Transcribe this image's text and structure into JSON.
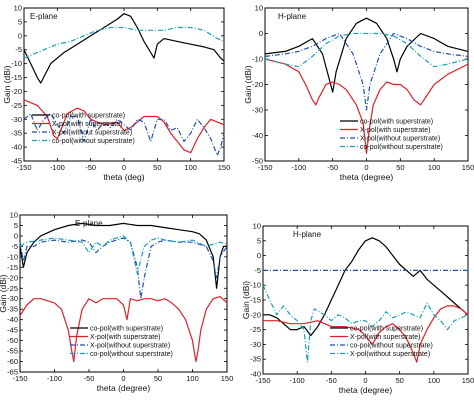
{
  "colors": {
    "co_with": "#000000",
    "x_with": "#e0202a",
    "co_without": "#1f4fb0",
    "x_without": "#1a9fb8"
  },
  "chart_data": [
    {
      "type": "line",
      "title": "E-plane",
      "xlabel": "theta (deg)",
      "ylabel": "Gain (dBi)",
      "xlim": [
        -150,
        150
      ],
      "ylim": [
        -45,
        10
      ],
      "xticks": [
        -150,
        -100,
        -50,
        0,
        50,
        100,
        150
      ],
      "xtick_labels": [
        "-150",
        "-100",
        "-50",
        "0",
        "50",
        "100",
        "150"
      ],
      "yticks": [
        10,
        5,
        0,
        -5,
        -10,
        -15,
        -20,
        -25,
        -30,
        -35,
        -40,
        -45
      ],
      "ytick_labels": [
        "10",
        "5",
        "0",
        "-5",
        "-10",
        "-15",
        "-20",
        "-25",
        "-30",
        "-35",
        "-40",
        "-45"
      ],
      "legend": "bottom-left",
      "series": [
        {
          "name": "co-pol(with superstrate)",
          "style": "solid",
          "color": "#000000",
          "x": [
            -150,
            -140,
            -130,
            -125,
            -110,
            -90,
            -70,
            -50,
            -30,
            -10,
            0,
            10,
            20,
            30,
            40,
            45,
            50,
            60,
            80,
            100,
            120,
            135,
            145,
            150
          ],
          "y": [
            -5,
            -10,
            -15,
            -17,
            -10,
            -6,
            -3,
            0,
            3,
            6,
            8,
            7,
            3,
            -2,
            -6,
            -8,
            -3,
            -1,
            -2,
            -3,
            -4,
            -5,
            -8,
            -9
          ]
        },
        {
          "name": "X-pol(with superstrate)",
          "style": "solid",
          "color": "#e0202a",
          "x": [
            -150,
            -130,
            -115,
            -105,
            -100,
            -95,
            -85,
            -70,
            -60,
            -50,
            -30,
            -10,
            0,
            10,
            30,
            50,
            60,
            70,
            80,
            90,
            100,
            110,
            120,
            130,
            140,
            150
          ],
          "y": [
            -23,
            -25,
            -29,
            -36,
            -37,
            -34,
            -28,
            -26,
            -27,
            -30,
            -32,
            -31,
            -34,
            -33,
            -29,
            -29,
            -31,
            -35,
            -38,
            -41,
            -42,
            -37,
            -33,
            -30,
            -31,
            -32
          ]
        },
        {
          "name": "X-pol(without superstrate)",
          "style": "dashdot",
          "color": "#1f4fb0",
          "x": [
            -150,
            -140,
            -130,
            -120,
            -110,
            -100,
            -90,
            -80,
            -70,
            -60,
            -50,
            -40,
            -30,
            -20,
            -10,
            0,
            10,
            20,
            30,
            40,
            50,
            60,
            70,
            80,
            90,
            100,
            110,
            120,
            130,
            140,
            145,
            150
          ],
          "y": [
            -30,
            -28,
            -34,
            -30,
            -28,
            -32,
            -35,
            -29,
            -29,
            -38,
            -30,
            -34,
            -31,
            -33,
            -30,
            -32,
            -34,
            -30,
            -31,
            -38,
            -30,
            -30,
            -34,
            -33,
            -38,
            -35,
            -30,
            -33,
            -37,
            -43,
            -40,
            -35
          ]
        },
        {
          "name": "co-pol(without superstrate)",
          "style": "dashdot",
          "color": "#1a9fb8",
          "x": [
            -150,
            -120,
            -100,
            -80,
            -60,
            -40,
            -20,
            0,
            20,
            40,
            60,
            80,
            100,
            120,
            140,
            150
          ],
          "y": [
            -8,
            -5,
            -3,
            -2,
            0,
            2,
            3,
            3,
            2,
            2,
            2,
            3,
            3,
            2,
            -1,
            -2
          ]
        }
      ]
    },
    {
      "type": "line",
      "title": "H-plane",
      "xlabel": "theta (degree)",
      "ylabel": "Gain (dBi)",
      "xlim": [
        -150,
        150
      ],
      "ylim": [
        -50,
        10
      ],
      "xticks": [
        -150,
        -100,
        -50,
        0,
        50,
        100,
        150
      ],
      "xtick_labels": [
        "-150",
        "-100",
        "-50",
        "0",
        "50",
        "100",
        "150"
      ],
      "yticks": [
        10,
        0,
        -10,
        -20,
        -30,
        -40,
        -50
      ],
      "ytick_labels": [
        "10",
        "0",
        "-10",
        "-20",
        "-30",
        "-40",
        "-50"
      ],
      "legend": "bottom-right",
      "series": [
        {
          "name": "co-pol(with superstrate)",
          "style": "solid",
          "color": "#000000",
          "x": [
            -150,
            -120,
            -100,
            -80,
            -65,
            -55,
            -50,
            -45,
            -30,
            -15,
            0,
            15,
            30,
            40,
            45,
            50,
            60,
            80,
            100,
            120,
            150
          ],
          "y": [
            -8,
            -7,
            -5,
            -2,
            -8,
            -18,
            -23,
            -15,
            -2,
            4,
            6,
            4,
            -2,
            -10,
            -15,
            -10,
            -5,
            0,
            -2,
            -5,
            -7
          ]
        },
        {
          "name": "X-pol(with superstrate)",
          "style": "solid",
          "color": "#e0202a",
          "x": [
            -150,
            -120,
            -100,
            -90,
            -80,
            -75,
            -70,
            -60,
            -50,
            -40,
            -30,
            -15,
            -5,
            0,
            5,
            10,
            20,
            30,
            40,
            50,
            60,
            70,
            80,
            100,
            120,
            150
          ],
          "y": [
            -10,
            -12,
            -15,
            -20,
            -26,
            -28,
            -25,
            -20,
            -19,
            -20,
            -22,
            -28,
            -35,
            -47,
            -36,
            -28,
            -22,
            -19,
            -20,
            -20,
            -22,
            -26,
            -28,
            -20,
            -16,
            -12
          ]
        },
        {
          "name": "X-pol(without superstrate)",
          "style": "dashdot",
          "color": "#1f4fb0",
          "x": [
            -150,
            -120,
            -100,
            -80,
            -60,
            -40,
            -20,
            -5,
            0,
            5,
            20,
            40,
            60,
            80,
            100,
            120,
            150
          ],
          "y": [
            -9,
            -8,
            -7,
            -5,
            -2,
            0,
            -8,
            -20,
            -30,
            -20,
            -8,
            0,
            -2,
            -5,
            -7,
            -8,
            -9
          ]
        },
        {
          "name": "co-pol(without superstrate)",
          "style": "dashdot",
          "color": "#1a9fb8",
          "x": [
            -150,
            -120,
            -100,
            -80,
            -60,
            -40,
            -20,
            0,
            20,
            40,
            60,
            80,
            100,
            120,
            150
          ],
          "y": [
            -10,
            -12,
            -13,
            -9,
            -4,
            -1,
            0,
            0,
            0,
            -1,
            -4,
            -9,
            -13,
            -12,
            -10
          ]
        }
      ]
    },
    {
      "type": "line",
      "title": "E-plane",
      "xlabel": "theta (degree)",
      "ylabel": "Gain (dBi)",
      "xlim": [
        -150,
        150
      ],
      "ylim": [
        -65,
        10
      ],
      "xticks": [
        -150,
        -100,
        -50,
        0,
        50,
        100,
        150
      ],
      "xtick_labels": [
        "-150",
        "-100",
        "-50",
        "0",
        "50",
        "100",
        "150"
      ],
      "yticks": [
        10,
        5,
        0,
        -5,
        -10,
        -15,
        -20,
        -25,
        -30,
        -35,
        -40,
        -45,
        -50,
        -55,
        -60,
        -65
      ],
      "ytick_labels": [
        "10",
        "5",
        "0",
        "-5",
        "-10",
        "-15",
        "-20",
        "-25",
        "-30",
        "-35",
        "-40",
        "-45",
        "-50",
        "-55",
        "-60",
        "-65"
      ],
      "legend": "bottom-center",
      "series": [
        {
          "name": "co-pol(with superstrate)",
          "style": "solid",
          "color": "#000000",
          "x": [
            -150,
            -145,
            -140,
            -130,
            -120,
            -100,
            -80,
            -60,
            -40,
            -20,
            0,
            20,
            40,
            60,
            80,
            100,
            110,
            120,
            130,
            135,
            140,
            145,
            150
          ],
          "y": [
            -5,
            -15,
            -8,
            -3,
            0,
            3,
            5,
            6,
            5,
            5,
            6,
            5,
            5,
            4,
            3,
            2,
            1,
            -2,
            -10,
            -25,
            -10,
            -5,
            -5
          ]
        },
        {
          "name": "X-pol(with superstrate)",
          "style": "solid",
          "color": "#e0202a",
          "x": [
            -150,
            -140,
            -130,
            -120,
            -110,
            -100,
            -90,
            -80,
            -75,
            -72,
            -68,
            -60,
            -50,
            -40,
            -30,
            -20,
            -10,
            0,
            5,
            10,
            20,
            30,
            40,
            50,
            60,
            70,
            80,
            90,
            100,
            105,
            108,
            112,
            120,
            130,
            140,
            150
          ],
          "y": [
            -38,
            -33,
            -30,
            -30,
            -31,
            -32,
            -35,
            -45,
            -55,
            -60,
            -48,
            -35,
            -30,
            -32,
            -30,
            -30,
            -30,
            -33,
            -40,
            -30,
            -31,
            -30,
            -30,
            -31,
            -30,
            -32,
            -35,
            -40,
            -50,
            -60,
            -55,
            -45,
            -35,
            -30,
            -29,
            -32
          ]
        },
        {
          "name": "X-pol(without superstrate)",
          "style": "dashdot",
          "color": "#1f4fb0",
          "x": [
            -150,
            -145,
            -140,
            -130,
            -120,
            -100,
            -80,
            -60,
            -50,
            -40,
            -30,
            -20,
            -10,
            0,
            10,
            20,
            25,
            30,
            40,
            50,
            60,
            80,
            100,
            120,
            130,
            135,
            140,
            150
          ],
          "y": [
            -3,
            -12,
            -5,
            -5,
            -3,
            -2,
            -3,
            -2,
            -3,
            -8,
            -5,
            -3,
            -2,
            -1,
            -3,
            -15,
            -30,
            -20,
            -5,
            -3,
            -2,
            -3,
            -3,
            -5,
            -12,
            -20,
            -10,
            -5
          ]
        },
        {
          "name": "co-pol(without superstrate)",
          "style": "dashdot",
          "color": "#1a9fb8",
          "x": [
            -150,
            -140,
            -120,
            -100,
            -80,
            -60,
            -50,
            -40,
            -30,
            -20,
            -10,
            0,
            10,
            20,
            30,
            40,
            50,
            60,
            80,
            100,
            120,
            140,
            150
          ],
          "y": [
            -5,
            -3,
            -2,
            -1,
            -2,
            -3,
            -8,
            -3,
            -5,
            -2,
            -1,
            0,
            -3,
            -18,
            -5,
            -2,
            -1,
            -2,
            -3,
            -2,
            -5,
            -3,
            -4
          ]
        }
      ]
    },
    {
      "type": "line",
      "title": "H-plane",
      "xlabel": "theta (degree)",
      "ylabel": "Gain (dBi)",
      "xlim": [
        -150,
        150
      ],
      "ylim": [
        -40,
        10
      ],
      "xticks": [
        -150,
        -100,
        -50,
        0,
        50,
        100,
        150
      ],
      "xtick_labels": [
        "-150",
        "-100",
        "-50",
        "0",
        "50",
        "100",
        "150"
      ],
      "yticks": [
        10,
        5,
        0,
        -5,
        -10,
        -15,
        -20,
        -25,
        -30,
        -35,
        -40
      ],
      "ytick_labels": [
        "10",
        "5",
        "0",
        "-5",
        "-10",
        "-15",
        "-20",
        "-25",
        "-30",
        "-35",
        "-40"
      ],
      "legend": "bottom-right",
      "series": [
        {
          "name": "co-pol(with superstrate)",
          "style": "solid",
          "color": "#000000",
          "x": [
            -150,
            -140,
            -130,
            -120,
            -110,
            -100,
            -90,
            -80,
            -70,
            -60,
            -50,
            -40,
            -30,
            -20,
            -10,
            0,
            10,
            20,
            30,
            40,
            50,
            60,
            70,
            80,
            90,
            100,
            110,
            120,
            130,
            140,
            150
          ],
          "y": [
            -20,
            -20,
            -21,
            -23,
            -25,
            -25,
            -24,
            -27,
            -24,
            -20,
            -15,
            -10,
            -5,
            -2,
            2,
            5,
            6,
            5,
            3,
            0,
            -3,
            -5,
            -7,
            -5,
            -8,
            -10,
            -12,
            -14,
            -16,
            -18,
            -20
          ]
        },
        {
          "name": "X-pol(with superstrate)",
          "style": "solid",
          "color": "#e0202a",
          "x": [
            -150,
            -130,
            -110,
            -90,
            -70,
            -50,
            -30,
            -10,
            0,
            10,
            20,
            30,
            40,
            50,
            60,
            70,
            75,
            80,
            90,
            100,
            110,
            120,
            130,
            140,
            150
          ],
          "y": [
            -22,
            -22,
            -23,
            -23,
            -22,
            -24,
            -24,
            -25,
            -27,
            -30,
            -26,
            -24,
            -23,
            -25,
            -28,
            -33,
            -36,
            -30,
            -25,
            -21,
            -18,
            -17,
            -17,
            -18,
            -20
          ]
        },
        {
          "name": "co-pol(without superstrate)",
          "style": "dashdot",
          "color": "#1f4fb0",
          "x": [
            -150,
            -130,
            -110,
            -90,
            -70,
            -50,
            -30,
            -10,
            10,
            30,
            50,
            70,
            90,
            110,
            130,
            150
          ],
          "y": [
            -5,
            -5,
            -5,
            -5,
            -5,
            -5,
            -5,
            -5,
            -5,
            -5,
            -5,
            -5,
            -5,
            -5,
            -5,
            -5
          ]
        },
        {
          "name": "X-pol(without superstrate)",
          "style": "dashdot",
          "color": "#1a9fb8",
          "x": [
            -150,
            -140,
            -130,
            -120,
            -110,
            -100,
            -90,
            -85,
            -80,
            -75,
            -60,
            -50,
            -40,
            -30,
            -20,
            -10,
            0,
            10,
            20,
            30,
            40,
            50,
            60,
            70,
            80,
            90,
            100,
            110,
            120,
            130,
            140,
            150
          ],
          "y": [
            -10,
            -15,
            -20,
            -17,
            -20,
            -22,
            -25,
            -36,
            -22,
            -18,
            -20,
            -22,
            -20,
            -21,
            -23,
            -22,
            -22,
            -24,
            -22,
            -19,
            -21,
            -20,
            -19,
            -20,
            -21,
            -16,
            -20,
            -22,
            -25,
            -22,
            -21,
            -20
          ]
        }
      ]
    }
  ]
}
